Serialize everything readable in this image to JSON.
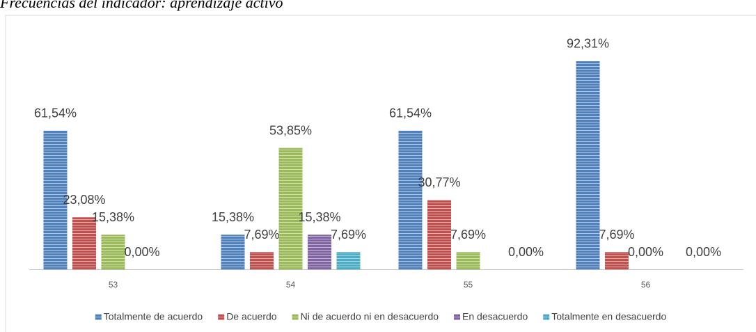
{
  "chart_data": {
    "type": "bar",
    "title": "Frecuencias del indicador: aprendizaje activo",
    "categories": [
      "53",
      "54",
      "55",
      "56"
    ],
    "ylim": [
      0,
      100
    ],
    "series": [
      {
        "name": "Totalmente de acuerdo",
        "color": "#4f81bd",
        "values": [
          61.54,
          15.38,
          61.54,
          92.31
        ],
        "value_labels": [
          "61,54%",
          "15,38%",
          "61,54%",
          "92,31%"
        ]
      },
      {
        "name": "De acuerdo",
        "color": "#c0504d",
        "values": [
          23.08,
          7.69,
          30.77,
          7.69
        ],
        "value_labels": [
          "23,08%",
          "7,69%",
          "30,77%",
          "7,69%"
        ]
      },
      {
        "name": "Ni de acuerdo ni en desacuerdo",
        "color": "#9bbb59",
        "values": [
          15.38,
          53.85,
          7.69,
          0
        ],
        "value_labels": [
          "15,38%",
          "53,85%",
          "7,69%",
          "0,00%"
        ]
      },
      {
        "name": "En desacuerdo",
        "color": "#8064a2",
        "values": [
          0,
          15.38,
          null,
          null
        ],
        "value_labels": [
          "0,00%",
          "15,38%",
          null,
          null
        ]
      },
      {
        "name": "Totalmente en desacuerdo",
        "color": "#4bacc6",
        "values": [
          null,
          7.69,
          0,
          0
        ],
        "value_labels": [
          null,
          "7,69%",
          "0,00%",
          "0,00%"
        ]
      }
    ]
  }
}
